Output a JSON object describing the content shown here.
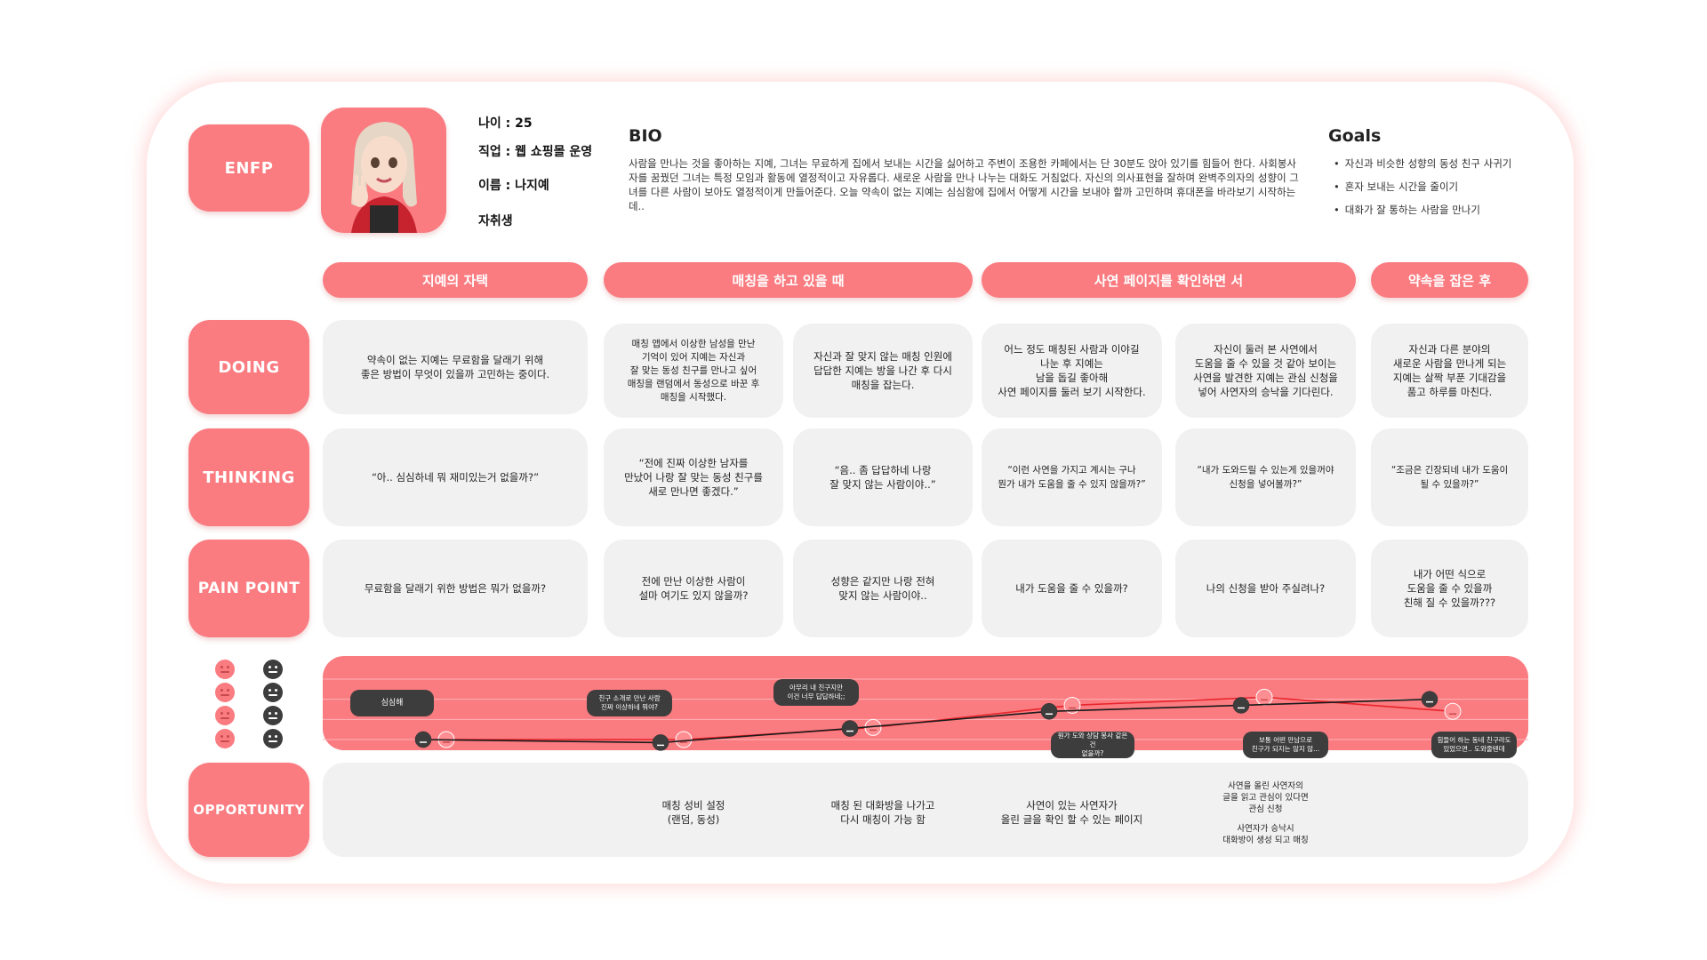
{
  "persona": {
    "type": "ENFP",
    "age_line": "나이 : 25",
    "job_line": "직업 : 웹 쇼핑몰 운영",
    "name_line": "이름 : 나지예",
    "living_line": "자취생"
  },
  "bio": {
    "title": "BIO",
    "text": "사람을 만나는 것을 좋아하는 지예, 그녀는 무료하게 집에서 보내는 시간을 싫어하고 주변이 조용한 카페에서는 단 30분도 앉아 있기를 힘들어 한다. 사회봉사자를 꿈꿨던 그녀는 특정 모임과 활동에 열정적이고 자유롭다. 새로운 사람을 만나 나누는 대화도 거침없다. 자신의 의사표현을 잘하며 완벽주의자의 성향이 그녀를 다른 사람이 보아도 열정적이게 만들어준다. 오늘 약속이 없는 지예는 심심함에 집에서 어떻게 시간을 보내야 할까 고민하며 휴대폰을 바라보기 시작하는데.."
  },
  "goals": {
    "title": "Goals",
    "items": [
      "자신과 비슷한 성향의 동성 친구 사귀기",
      "혼자 보내는 시간을 줄이기",
      "대화가 잘 통하는 사람을 만나기"
    ]
  },
  "row_labels": {
    "doing": "DOING",
    "thinking": "THINKING",
    "pain": "PAIN POINT",
    "opportunity": "OPPORTUNITY"
  },
  "phases": [
    "지예의 자택",
    "매칭을 하고 있을 때",
    "사연 페이지를 확인하면 서",
    "약속을 잡은 후"
  ],
  "doing": [
    "약속이 없는 지예는 무료함을 달래기 위해\n좋은 방법이 무엇이 있을까 고민하는 중이다.",
    "매칭 앱에서 이상한 남성을 만난\n기억이 있어 지예는 자신과\n잘 맞는 동성 친구를 만나고 싶어\n매칭을 랜덤에서 동성으로 바꾼 후\n매칭을 시작했다.",
    "자신과 잘 맞지 않는 매칭 인원에\n답답한 지예는 방을 나간 후 다시\n매칭을 잡는다.",
    "어느 정도 매칭된 사람과 이야길\n나눈 후 지예는\n남을 돕길 좋아해\n사연 페이지를 둘러 보기 시작한다.",
    "자신이 둘러 본 사연에서\n도움을 줄 수 있을 것 같아 보이는\n사연을 발견한 지예는 관심 신청을\n넣어 사연자의 승낙을 기다린다.",
    "자신과 다른 분야의\n새로운 사람을 만나게 되는\n지예는 살짝 부푼 기대감을\n품고 하루를 마친다."
  ],
  "thinking": [
    "“아.. 심심하네 뭐 재미있는거 없을까?”",
    "“전에 진짜 이상한 남자를\n만났어 나랑 잘 맞는 동성 친구를\n새로 만나면 좋겠다.”",
    "“음.. 좀 답답하네 나랑\n잘 맞지 않는 사람이야..”",
    "“이런 사연을 가지고 계시는 구나\n뭔가 내가 도움을 줄 수 있지 않을까?”",
    "“내가 도와드릴 수 있는게 있을꺼야\n신청을 넣어볼까?”",
    "“조금은 긴장되네 내가 도움이\n될 수 있을까?”"
  ],
  "pain": [
    "무료함을 달래기 위한 방법은 뭐가 없을까?",
    "전에 만난 이상한 사람이\n설마 여기도 있지 않을까?",
    "성향은 같지만 나랑 전혀\n맞지 않는 사람이야..",
    "내가 도움을 줄 수 있을까?",
    "나의 신청을 받아 주실려나?",
    "내가 어떤 식으로\n도움을 줄 수 있을까\n친해 질 수 있을까???"
  ],
  "emotion_tags": [
    "심심해",
    "친구 소개로 만난 사람\n진짜 이상하네 뭐야?",
    "아무리 내 친구지만\n이건 너무 답답하네;;",
    "뭔가 도와 상담 봉사 같은건\n없을까?",
    "보통 어떤 만남으로\n친구가 되지는 않지 않...",
    "힘들어 하는 동네 친구라도\n있었으면.. 도와줄텐데"
  ],
  "opportunity": [
    "매칭 성비 설정\n(랜덤, 동성)",
    "매칭 된 대화방을 나가고\n다시 매칭이 가능 함",
    "사연이 있는 사연자가\n올린 글을 확인 할 수 있는 페이지",
    "사연을 올린 사연자의\n글을 읽고 관심이 있다면\n관심 신청",
    "사연자가 승낙시\n대화방이 생성 되고 매칭"
  ],
  "chart_data": {
    "type": "line",
    "x": [
      1,
      2,
      3,
      4,
      5,
      6
    ],
    "ylim": [
      1,
      4
    ],
    "series": [
      {
        "color": "#e8242b",
        "values": [
          1.0,
          1.0,
          1.6,
          2.7,
          3.1,
          2.4
        ]
      },
      {
        "color": "#1a1a1a",
        "values": [
          1.0,
          0.85,
          1.55,
          2.4,
          2.7,
          3.0
        ]
      }
    ]
  },
  "colors": {
    "accent": "#fa7b80",
    "card": "#f1f1f1",
    "dark": "#3d3d3d"
  }
}
